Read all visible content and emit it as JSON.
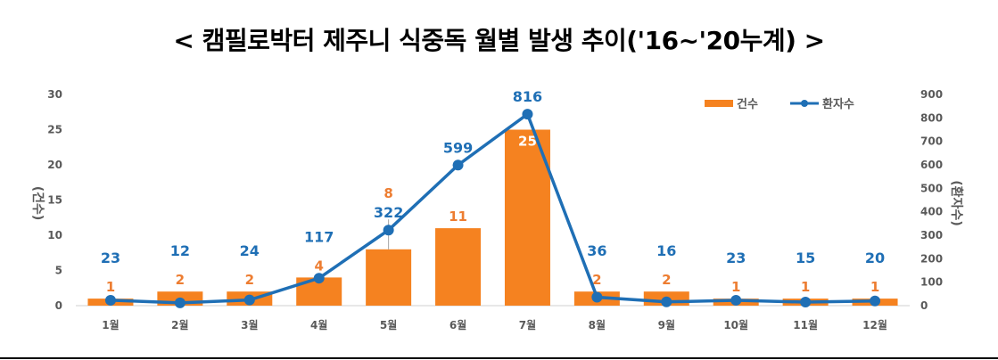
{
  "chart_data": {
    "type": "bar",
    "title": "< 캠필로박터 제주니 식중독 월별 발생 추이('16~'20누계) >",
    "categories": [
      "1월",
      "2월",
      "3월",
      "4월",
      "5월",
      "6월",
      "7월",
      "8월",
      "9월",
      "10월",
      "11월",
      "12월"
    ],
    "series": [
      {
        "name": "건수",
        "type": "bar",
        "axis": "left",
        "color": "#F58220",
        "values": [
          1,
          2,
          2,
          4,
          8,
          11,
          25,
          2,
          2,
          1,
          1,
          1
        ]
      },
      {
        "name": "환자수",
        "type": "line",
        "axis": "right",
        "color": "#1F6FB5",
        "values": [
          23,
          12,
          24,
          117,
          322,
          599,
          816,
          36,
          16,
          23,
          15,
          20
        ]
      }
    ],
    "ylabel": "(건수)",
    "y2label": "(환자수)",
    "ylim": [
      0,
      30
    ],
    "y2lim": [
      0,
      900
    ],
    "yticks": [
      "0",
      "5",
      "10",
      "15",
      "20",
      "25",
      "30"
    ],
    "y2ticks": [
      "0",
      "100",
      "200",
      "300",
      "400",
      "500",
      "600",
      "700",
      "800",
      "900"
    ],
    "legend_position": "top-right",
    "grid": false
  }
}
